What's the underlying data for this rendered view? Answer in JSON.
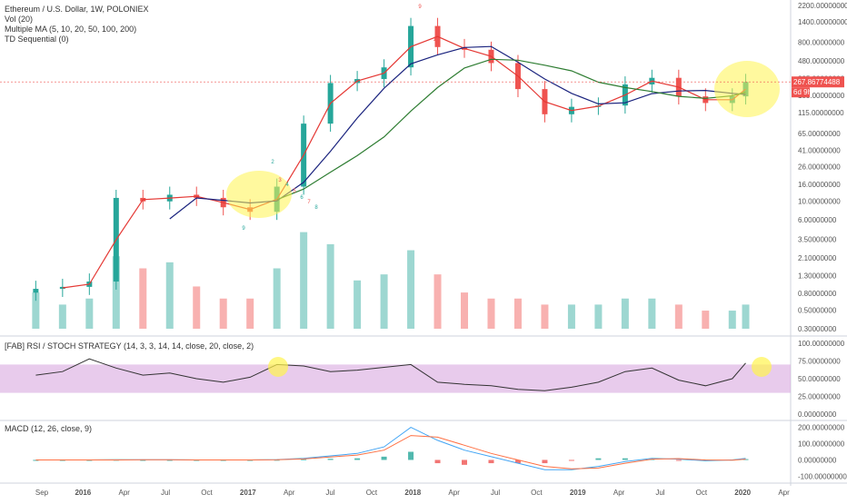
{
  "legend": {
    "title": "Ethereum / U.S. Dollar, 1W, POLONIEX",
    "vol": "Vol (20)",
    "ma": "Multiple MA (5, 10, 20, 50, 100, 200)",
    "td": "TD Sequential (0)"
  },
  "indicators": {
    "rsi_title": "[FAB] RSI / STOCH STRATEGY (14, 3, 3, 14, 14, close, 20, close, 2)",
    "macd_title": "MACD (12, 26, close, 9)"
  },
  "price_tags": {
    "last_price": "267.86774488",
    "time_left": "6d 9h"
  },
  "colors": {
    "up": "#26a69a",
    "down": "#ef5350",
    "ma_fast": "#e53935",
    "ma_mid": "#1a237e",
    "ma_slow": "#2e7d32",
    "highlight": "#fff44f",
    "band": "#d8a8e0"
  },
  "chart_data": [
    {
      "type": "line",
      "title": "Ethereum / U.S. Dollar, 1W, POLONIEX",
      "scale": "log",
      "x_tick_labels": [
        "Sep",
        "2016",
        "Apr",
        "Jul",
        "Oct",
        "2017",
        "Apr",
        "Jul",
        "Oct",
        "2018",
        "Apr",
        "Jul",
        "Oct",
        "2019",
        "Apr",
        "Jul",
        "Oct",
        "2020",
        "Apr"
      ],
      "y_tick_labels": [
        "2200.00000000",
        "1400.00000000",
        "800.00000000",
        "480.00000000",
        "295.00000000",
        "185.00000000",
        "115.00000000",
        "65.00000000",
        "41.00000000",
        "26.00000000",
        "16.00000000",
        "10.00000000",
        "6.00000000",
        "3.50000000",
        "2.10000000",
        "1.30000000",
        "0.80000000",
        "0.50000000",
        "0.30000000"
      ],
      "x": [
        "2015-09",
        "2015-11",
        "2016-01",
        "2016-03",
        "2016-05",
        "2016-07",
        "2016-09",
        "2016-11",
        "2017-01",
        "2017-03",
        "2017-05",
        "2017-07",
        "2017-09",
        "2017-11",
        "2018-01",
        "2018-03",
        "2018-05",
        "2018-07",
        "2018-09",
        "2018-11",
        "2019-01",
        "2019-03",
        "2019-05",
        "2019-07",
        "2019-09",
        "2019-11",
        "2020-01",
        "2020-02"
      ],
      "series": [
        {
          "name": "Ethereum / U.S. Dollar",
          "values": [
            0.9,
            0.95,
            1.1,
            11,
            10,
            12,
            11,
            8.5,
            7.5,
            15,
            85,
            260,
            290,
            400,
            1250,
            700,
            650,
            450,
            220,
            110,
            135,
            140,
            250,
            300,
            180,
            150,
            180,
            267.87
          ]
        }
      ],
      "volume_values": [
        0.6,
        0.4,
        0.5,
        1.2,
        1.0,
        1.1,
        0.7,
        0.5,
        0.5,
        1.0,
        1.6,
        1.4,
        0.8,
        0.9,
        1.3,
        0.9,
        0.6,
        0.5,
        0.5,
        0.4,
        0.4,
        0.4,
        0.5,
        0.5,
        0.4,
        0.3,
        0.3,
        0.4
      ],
      "annotations": [
        "9",
        "9",
        "1",
        "2",
        "3",
        "4",
        "5",
        "6",
        "7",
        "8"
      ]
    },
    {
      "type": "line",
      "title": "[FAB] RSI / STOCH STRATEGY (14, 3, 3, 14, 14, close, 20, close, 2)",
      "y_tick_labels": [
        "100.00000000",
        "75.00000000",
        "50.00000000",
        "25.00000000",
        "0.00000000"
      ],
      "ylim": [
        0,
        100
      ],
      "band": [
        30,
        70
      ],
      "series": [
        {
          "values": [
            55,
            60,
            78,
            65,
            55,
            58,
            50,
            45,
            52,
            70,
            68,
            60,
            62,
            66,
            70,
            45,
            42,
            40,
            35,
            33,
            38,
            45,
            60,
            65,
            48,
            40,
            50,
            72
          ]
        }
      ]
    },
    {
      "type": "bar",
      "title": "MACD (12, 26, close, 9)",
      "y_tick_labels": [
        "200.00000000",
        "100.00000000",
        "0.00000000",
        "-100.00000000"
      ],
      "ylim": [
        -120,
        220
      ],
      "series": [
        {
          "name": "MACD",
          "values": [
            0,
            0,
            0,
            1,
            1,
            1,
            0,
            0,
            0,
            2,
            10,
            25,
            40,
            80,
            200,
            120,
            60,
            20,
            -20,
            -60,
            -60,
            -40,
            -10,
            10,
            5,
            -5,
            0,
            10
          ]
        },
        {
          "name": "Signal",
          "values": [
            0,
            0,
            0,
            0,
            1,
            1,
            0,
            0,
            0,
            1,
            6,
            18,
            30,
            60,
            150,
            140,
            90,
            40,
            0,
            -40,
            -55,
            -50,
            -20,
            5,
            8,
            0,
            -2,
            5
          ]
        }
      ]
    }
  ]
}
